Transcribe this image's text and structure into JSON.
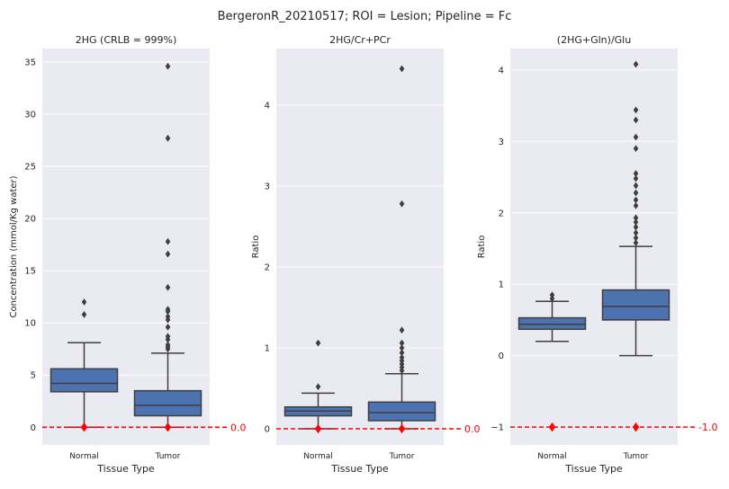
{
  "figure_title": "BergeronR_20210517; ROI = Lesion; Pipeline = Fc",
  "colors": {
    "background": "#eaeaf2",
    "grid": "#ffffff",
    "box_fill": "#4c72b0",
    "box_edge": "#3f3f3f",
    "reference": "#ff0000"
  },
  "chart_data": [
    {
      "type": "box",
      "title": "2HG (CRLB = 999%)",
      "xlabel": "Tissue Type",
      "ylabel": "Concentration (mmol/Kg water)",
      "categories": [
        "Normal",
        "Tumor"
      ],
      "ylim": [
        -1.7,
        36.3
      ],
      "yticks": [
        0,
        5,
        10,
        15,
        20,
        25,
        30,
        35
      ],
      "ytick_labels": [
        "0",
        "5",
        "10",
        "15",
        "20",
        "25",
        "30",
        "35"
      ],
      "boxes": [
        {
          "category": "Normal",
          "whisker_low": 0.0,
          "q1": 3.4,
          "median": 4.2,
          "q3": 5.6,
          "whisker_high": 8.1,
          "outliers": [
            10.8,
            12.0
          ]
        },
        {
          "category": "Tumor",
          "whisker_low": 0.0,
          "q1": 1.1,
          "median": 2.1,
          "q3": 3.5,
          "whisker_high": 7.1,
          "outliers": [
            7.5,
            7.7,
            7.9,
            8.4,
            8.7,
            9.6,
            10.3,
            10.6,
            11.1,
            11.3,
            13.4,
            16.6,
            17.8,
            27.7,
            34.6
          ]
        }
      ],
      "reference_line": {
        "value": 0.0,
        "label": "0.0"
      }
    },
    {
      "type": "box",
      "title": "2HG/Cr+PCr",
      "xlabel": "Tissue Type",
      "ylabel": "Ratio",
      "categories": [
        "Normal",
        "Tumor"
      ],
      "ylim": [
        -0.2,
        4.7
      ],
      "yticks": [
        0,
        1,
        2,
        3,
        4
      ],
      "ytick_labels": [
        "0",
        "1",
        "2",
        "3",
        "4"
      ],
      "boxes": [
        {
          "category": "Normal",
          "whisker_low": 0.0,
          "q1": 0.16,
          "median": 0.22,
          "q3": 0.27,
          "whisker_high": 0.44,
          "outliers": [
            0.52,
            1.06
          ]
        },
        {
          "category": "Tumor",
          "whisker_low": 0.0,
          "q1": 0.1,
          "median": 0.2,
          "q3": 0.33,
          "whisker_high": 0.68,
          "outliers": [
            0.72,
            0.76,
            0.8,
            0.84,
            0.88,
            0.94,
            1.0,
            1.06,
            1.22,
            2.78,
            4.45
          ]
        }
      ],
      "reference_line": {
        "value": 0.0,
        "label": "0.0"
      }
    },
    {
      "type": "box",
      "title": "(2HG+Gln)/Glu",
      "xlabel": "Tissue Type",
      "ylabel": "Ratio",
      "categories": [
        "Normal",
        "Tumor"
      ],
      "ylim": [
        -1.25,
        4.3
      ],
      "yticks": [
        -1,
        0,
        1,
        2,
        3,
        4
      ],
      "ytick_labels": [
        "−1",
        "0",
        "1",
        "2",
        "3",
        "4"
      ],
      "boxes": [
        {
          "category": "Normal",
          "whisker_low": 0.2,
          "q1": 0.37,
          "median": 0.44,
          "q3": 0.53,
          "whisker_high": 0.76,
          "outliers": [
            0.8,
            0.85
          ]
        },
        {
          "category": "Tumor",
          "whisker_low": 0.0,
          "q1": 0.5,
          "median": 0.69,
          "q3": 0.92,
          "whisker_high": 1.53,
          "outliers": [
            1.58,
            1.65,
            1.72,
            1.8,
            1.87,
            1.93,
            2.1,
            2.18,
            2.28,
            2.38,
            2.48,
            2.55,
            2.9,
            3.06,
            3.3,
            3.44,
            4.08
          ]
        }
      ],
      "reference_line": {
        "value": -1.0,
        "label": "-1.0"
      }
    }
  ]
}
